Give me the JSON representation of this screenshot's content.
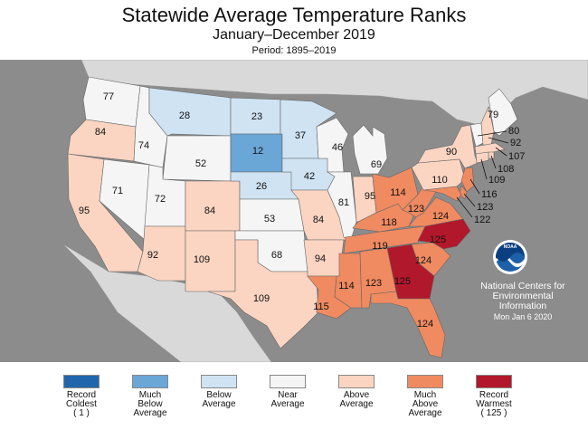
{
  "header": {
    "title": "Statewide Average Temperature Ranks",
    "subtitle": "January–December 2019",
    "period": "Period: 1895–2019"
  },
  "colors": {
    "record_coldest": "#2166ac",
    "much_below": "#6aa6d6",
    "below": "#cfe3f3",
    "near": "#f5f5f5",
    "above": "#fbd5c2",
    "much_above": "#f08a61",
    "record_warmest": "#b2182b",
    "background": "#8c8c8c",
    "water": "#8c8c8c"
  },
  "states": {
    "WA": {
      "rank": "77",
      "category": "near"
    },
    "OR": {
      "rank": "84",
      "category": "above"
    },
    "CA": {
      "rank": "95",
      "category": "above"
    },
    "ID": {
      "rank": "74",
      "category": "near"
    },
    "NV": {
      "rank": "71",
      "category": "near"
    },
    "MT": {
      "rank": "28",
      "category": "below"
    },
    "WY": {
      "rank": "52",
      "category": "near"
    },
    "UT": {
      "rank": "72",
      "category": "near"
    },
    "AZ": {
      "rank": "92",
      "category": "above"
    },
    "CO": {
      "rank": "84",
      "category": "above"
    },
    "NM": {
      "rank": "109",
      "category": "above"
    },
    "ND": {
      "rank": "23",
      "category": "below"
    },
    "SD": {
      "rank": "12",
      "category": "much_below"
    },
    "NE": {
      "rank": "26",
      "category": "below"
    },
    "KS": {
      "rank": "53",
      "category": "near"
    },
    "OK": {
      "rank": "68",
      "category": "near"
    },
    "TX": {
      "rank": "109",
      "category": "above"
    },
    "MN": {
      "rank": "37",
      "category": "below"
    },
    "IA": {
      "rank": "42",
      "category": "below"
    },
    "MO": {
      "rank": "84",
      "category": "above"
    },
    "AR": {
      "rank": "94",
      "category": "above"
    },
    "LA": {
      "rank": "115",
      "category": "much_above"
    },
    "WI": {
      "rank": "46",
      "category": "near"
    },
    "IL": {
      "rank": "81",
      "category": "near"
    },
    "MS": {
      "rank": "114",
      "category": "much_above"
    },
    "MI": {
      "rank": "69",
      "category": "near"
    },
    "IN": {
      "rank": "95",
      "category": "above"
    },
    "KY": {
      "rank": "118",
      "category": "much_above"
    },
    "TN": {
      "rank": "119",
      "category": "much_above"
    },
    "AL": {
      "rank": "123",
      "category": "much_above"
    },
    "OH": {
      "rank": "114",
      "category": "much_above"
    },
    "WV": {
      "rank": "123",
      "category": "much_above"
    },
    "VA": {
      "rank": "124",
      "category": "much_above"
    },
    "NC": {
      "rank": "125",
      "category": "record_warmest"
    },
    "SC": {
      "rank": "124",
      "category": "much_above"
    },
    "GA": {
      "rank": "125",
      "category": "record_warmest"
    },
    "FL": {
      "rank": "124",
      "category": "much_above"
    },
    "PA": {
      "rank": "110",
      "category": "above"
    },
    "NY": {
      "rank": "90",
      "category": "above"
    },
    "ME": {
      "rank": "79",
      "category": "near"
    },
    "VT": {
      "rank": "80",
      "category": "near"
    },
    "NH": {
      "rank": "92",
      "category": "above"
    },
    "MA": {
      "rank": "107",
      "category": "above"
    },
    "RI": {
      "rank": "108",
      "category": "above"
    },
    "CT": {
      "rank": "109",
      "category": "above"
    },
    "NJ": {
      "rank": "116",
      "category": "much_above"
    },
    "DE": {
      "rank": "123",
      "category": "much_above"
    },
    "MD": {
      "rank": "122",
      "category": "much_above"
    }
  },
  "noaa": {
    "logo_text": "NOAA",
    "line1": "National Centers for",
    "line2": "Environmental",
    "line3": "Information",
    "date": "Mon Jan  6 2020"
  },
  "legend": [
    {
      "key": "record_coldest",
      "line1": "Record",
      "line2": "Coldest",
      "line3": "( 1 )"
    },
    {
      "key": "much_below",
      "line1": "Much",
      "line2": "Below",
      "line3": "Average"
    },
    {
      "key": "below",
      "line1": "Below",
      "line2": "Average",
      "line3": ""
    },
    {
      "key": "near",
      "line1": "Near",
      "line2": "Average",
      "line3": ""
    },
    {
      "key": "above",
      "line1": "Above",
      "line2": "Average",
      "line3": ""
    },
    {
      "key": "much_above",
      "line1": "Much",
      "line2": "Above",
      "line3": "Average"
    },
    {
      "key": "record_warmest",
      "line1": "Record",
      "line2": "Warmest",
      "line3": "( 125 )"
    }
  ]
}
